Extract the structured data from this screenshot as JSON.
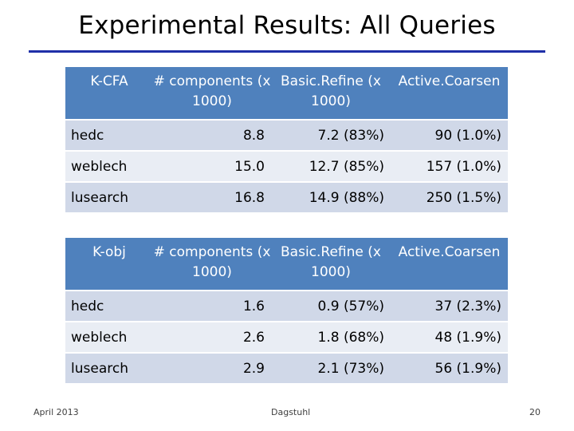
{
  "slide": {
    "title": "Experimental Results: All Queries",
    "footer_left": "April 2013",
    "footer_center": "Dagstuhl",
    "page_number": "20",
    "rule_color": "#1f2fa8"
  },
  "tables": [
    {
      "corner": "K-CFA",
      "columns": [
        "# components (x 1000)",
        "Basic.Refine (x 1000)",
        "Active.Coarsen"
      ],
      "rows": [
        {
          "label": "hedc",
          "components": "8.8",
          "basic": "7.2 (83%)",
          "active": "90 (1.0%)"
        },
        {
          "label": "weblech",
          "components": "15.0",
          "basic": "12.7 (85%)",
          "active": "157 (1.0%)"
        },
        {
          "label": "lusearch",
          "components": "16.8",
          "basic": "14.9 (88%)",
          "active": "250 (1.5%)"
        }
      ]
    },
    {
      "corner": "K-obj",
      "columns": [
        "# components (x 1000)",
        "Basic.Refine (x 1000)",
        "Active.Coarsen"
      ],
      "rows": [
        {
          "label": "hedc",
          "components": "1.6",
          "basic": "0.9 (57%)",
          "active": "37 (2.3%)"
        },
        {
          "label": "weblech",
          "components": "2.6",
          "basic": "1.8 (68%)",
          "active": "48 (1.9%)"
        },
        {
          "label": "lusearch",
          "components": "2.9",
          "basic": "2.1 (73%)",
          "active": "56 (1.9%)"
        }
      ]
    }
  ],
  "colors": {
    "header_bg": "#4f81bd",
    "row_odd": "#d0d8e8",
    "row_even": "#e9edf4"
  }
}
